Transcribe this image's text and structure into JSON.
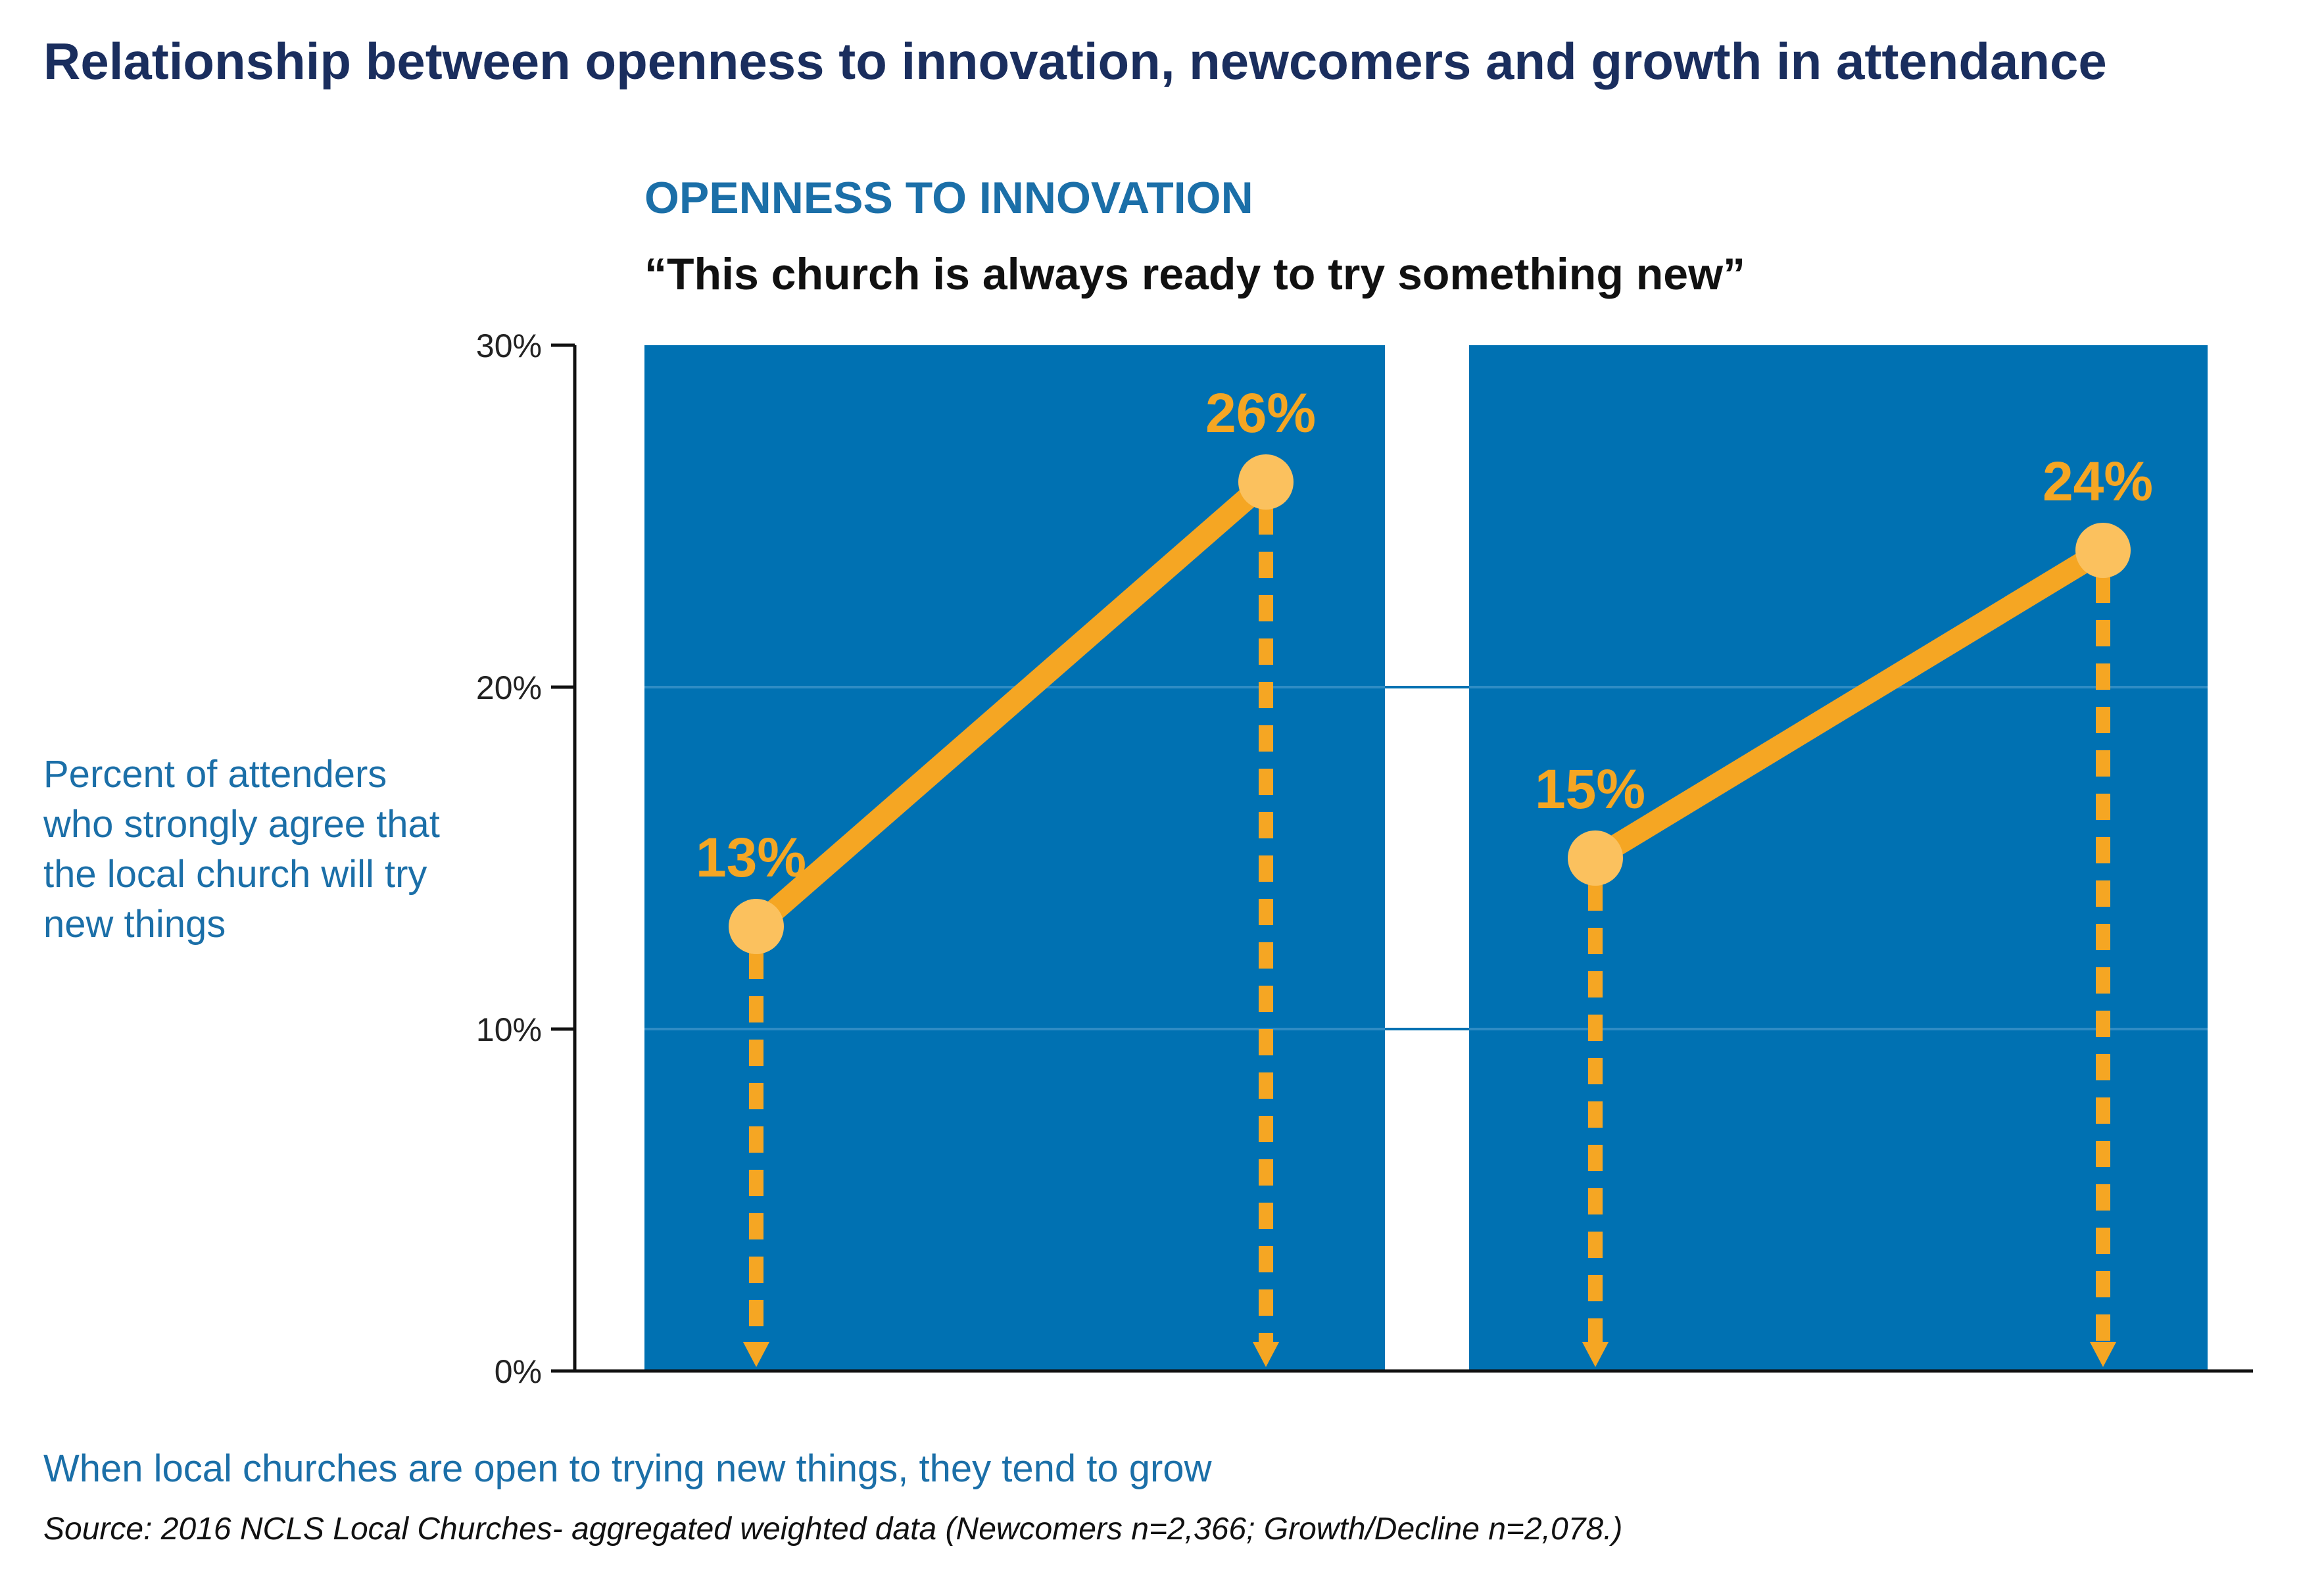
{
  "title": "Relationship between openness to innovation, newcomers and growth in attendance",
  "subtitle": "OPENNESS TO INNOVATION",
  "quote": "“This church is always ready to try something new”",
  "ylabel": "Percent of attenders who strongly agree that the local church will try new things",
  "takeaway": "When local churches are open to trying new things, they tend to grow",
  "source": "Source: 2016 NCLS Local Churches- aggregated weighted data (Newcomers n=2,366; Growth/Decline n=2,078.)",
  "colors": {
    "panel": "#0071b2",
    "line": "#f5a623",
    "marker": "#fbc15e",
    "title": "#1a2e5e",
    "accent": "#1b6fa8"
  },
  "chart_data": {
    "type": "line",
    "ylim": [
      0,
      30
    ],
    "yticks": [
      "0%",
      "10%",
      "20%",
      "30%"
    ],
    "ytick_values": [
      0,
      10,
      20,
      30
    ],
    "grid": true,
    "panels": [
      {
        "points": [
          {
            "value": 13,
            "label": "13%"
          },
          {
            "value": 26,
            "label": "26%"
          }
        ]
      },
      {
        "points": [
          {
            "value": 15,
            "label": "15%"
          },
          {
            "value": 24,
            "label": "24%"
          }
        ]
      }
    ]
  }
}
